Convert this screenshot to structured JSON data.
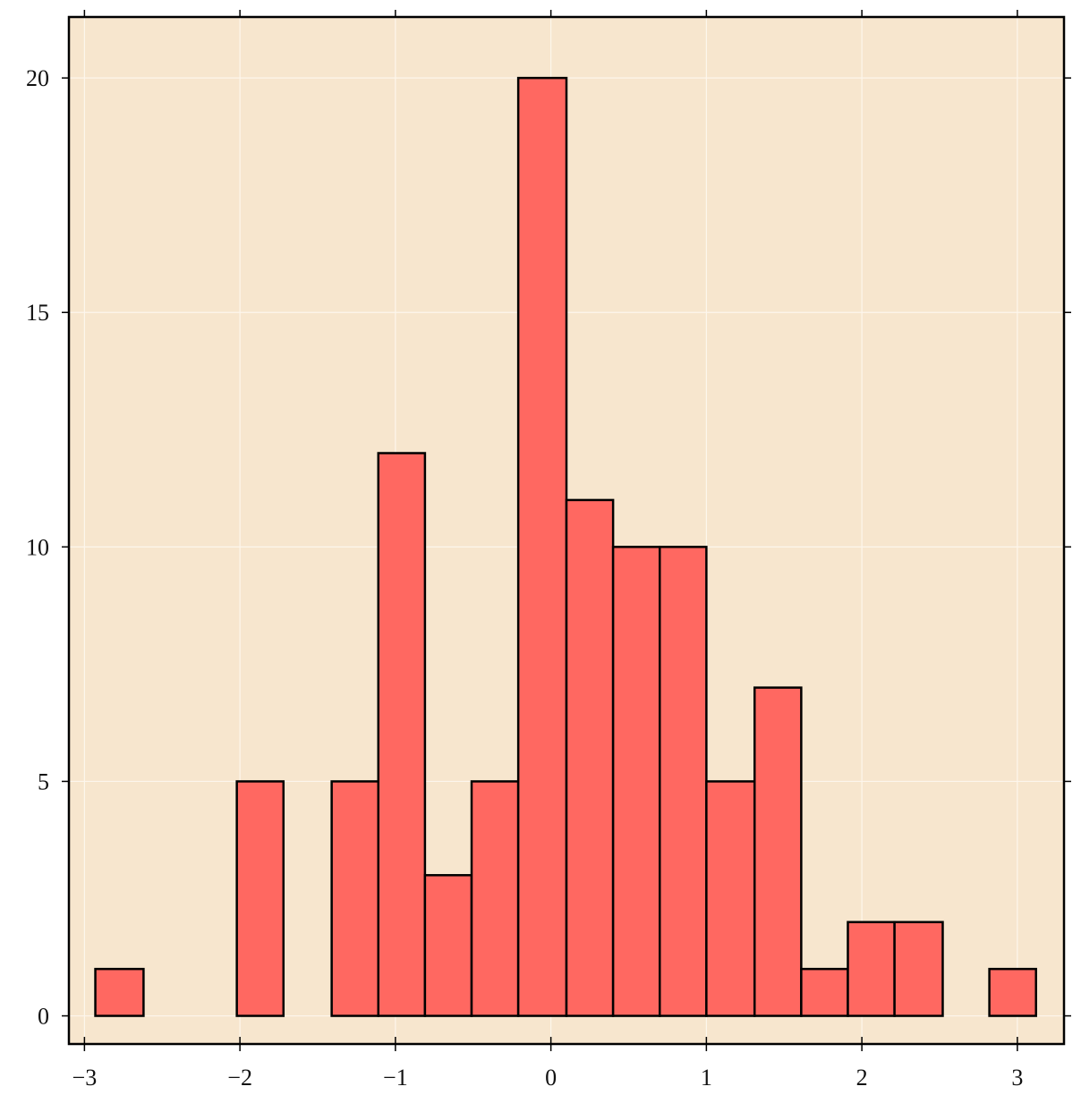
{
  "chart_data": {
    "type": "bar",
    "title": "",
    "xlabel": "",
    "ylabel": "",
    "bins": [
      {
        "x0": -2.93,
        "x1": -2.62,
        "count": 1
      },
      {
        "x0": -2.62,
        "x1": -2.32,
        "count": 0
      },
      {
        "x0": -2.32,
        "x1": -2.02,
        "count": 0
      },
      {
        "x0": -2.02,
        "x1": -1.72,
        "count": 5
      },
      {
        "x0": -1.72,
        "x1": -1.41,
        "count": 0
      },
      {
        "x0": -1.41,
        "x1": -1.11,
        "count": 5
      },
      {
        "x0": -1.11,
        "x1": -0.81,
        "count": 12
      },
      {
        "x0": -0.81,
        "x1": -0.51,
        "count": 3
      },
      {
        "x0": -0.51,
        "x1": -0.21,
        "count": 5
      },
      {
        "x0": -0.21,
        "x1": 0.1,
        "count": 20
      },
      {
        "x0": 0.1,
        "x1": 0.4,
        "count": 11
      },
      {
        "x0": 0.4,
        "x1": 0.7,
        "count": 10
      },
      {
        "x0": 0.7,
        "x1": 1.0,
        "count": 10
      },
      {
        "x0": 1.0,
        "x1": 1.31,
        "count": 5
      },
      {
        "x0": 1.31,
        "x1": 1.61,
        "count": 7
      },
      {
        "x0": 1.61,
        "x1": 1.91,
        "count": 1
      },
      {
        "x0": 1.91,
        "x1": 2.21,
        "count": 2
      },
      {
        "x0": 2.21,
        "x1": 2.52,
        "count": 2
      },
      {
        "x0": 2.52,
        "x1": 2.82,
        "count": 0
      },
      {
        "x0": 2.82,
        "x1": 3.12,
        "count": 1
      }
    ],
    "xlim": [
      -3.1,
      3.3
    ],
    "ylim": [
      -0.6,
      21.3
    ],
    "xticks": [
      {
        "value": -3,
        "label": "−3"
      },
      {
        "value": -2,
        "label": "−2"
      },
      {
        "value": -1,
        "label": "−1"
      },
      {
        "value": 0,
        "label": "0"
      },
      {
        "value": 1,
        "label": "1"
      },
      {
        "value": 2,
        "label": "2"
      },
      {
        "value": 3,
        "label": "3"
      }
    ],
    "yticks": [
      {
        "value": 0,
        "label": "0"
      },
      {
        "value": 5,
        "label": "5"
      },
      {
        "value": 10,
        "label": "10"
      },
      {
        "value": 15,
        "label": "15"
      },
      {
        "value": 20,
        "label": "20"
      }
    ],
    "grid": true,
    "legend": "none",
    "colors": {
      "bar_fill": "#ff6861",
      "bar_edge": "#000000",
      "plot_background": "#f7e6ce",
      "grid": "#fdf6ec"
    }
  }
}
